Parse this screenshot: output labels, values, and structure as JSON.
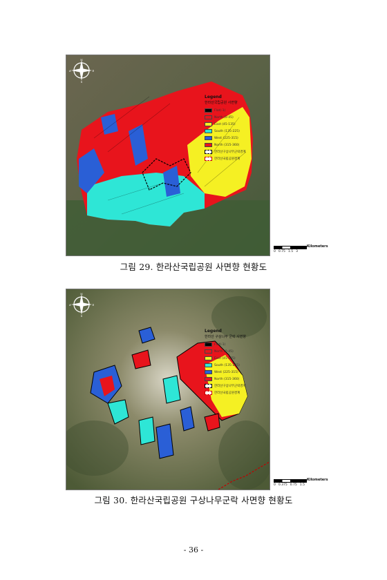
{
  "figures": [
    {
      "legend": {
        "title": "Legend",
        "subtitle": "한라산국립공원 사면향",
        "items": [
          {
            "label": "Flat(-1)",
            "color": "#000000",
            "style": "solid"
          },
          {
            "label": "North (0-45)",
            "color": "#e8141c",
            "style": "solid"
          },
          {
            "label": "East (45-135)",
            "color": "#f5f023",
            "style": "solid"
          },
          {
            "label": "South (135-225)",
            "color": "#2ee6d6",
            "style": "solid"
          },
          {
            "label": "West (225-315)",
            "color": "#2a5fd6",
            "style": "solid"
          },
          {
            "label": "North (315-360)",
            "color": "#e8141c",
            "style": "solid"
          },
          {
            "label": "한라산구상나무군락경계",
            "color": "#000000",
            "style": "dash"
          },
          {
            "label": "한라산국립공원경계",
            "color": "#c00000",
            "style": "dash-red"
          }
        ]
      },
      "scale": {
        "unit": "Kilometers",
        "ticks": [
          "0",
          "0.75",
          "1.5",
          "3"
        ]
      },
      "compass": {
        "n": "N",
        "s": "S",
        "e": "E",
        "w": "W"
      },
      "caption": "그림 29. 한라산국립공원 사면향 현황도"
    },
    {
      "legend": {
        "title": "Legend",
        "subtitle": "한라산 구상나무 군락 사면향",
        "items": [
          {
            "label": "Flat(-1)",
            "color": "#000000",
            "style": "solid"
          },
          {
            "label": "North (0-45)",
            "color": "#e8141c",
            "style": "solid"
          },
          {
            "label": "East (45-135)",
            "color": "#f5f023",
            "style": "solid"
          },
          {
            "label": "South (135-225)",
            "color": "#2ee6d6",
            "style": "solid"
          },
          {
            "label": "West (225-315)",
            "color": "#2a5fd6",
            "style": "solid"
          },
          {
            "label": "North (315-360)",
            "color": "#e8141c",
            "style": "solid"
          },
          {
            "label": "한라산구상나무군락경계",
            "color": "#000000",
            "style": "dash"
          },
          {
            "label": "한라산국립공원경계",
            "color": "#c00000",
            "style": "dash-red"
          }
        ]
      },
      "scale": {
        "unit": "Kilometers",
        "ticks": [
          "0",
          "0.375",
          "0.75",
          "1.5"
        ]
      },
      "compass": {
        "n": "N",
        "s": "S",
        "e": "E",
        "w": "W"
      },
      "caption": "그림 30. 한라산국립공원 구상나무군락 사면향 현황도"
    }
  ],
  "page_number": "- 36 -"
}
